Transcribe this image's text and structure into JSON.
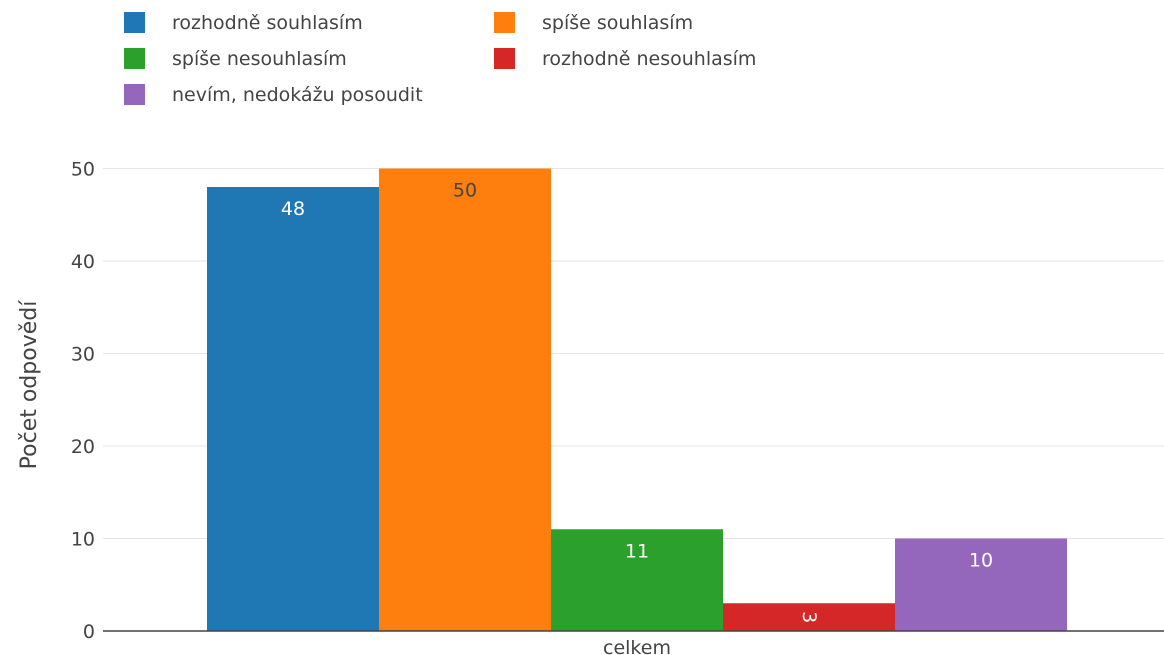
{
  "chart_data": {
    "type": "bar",
    "title": "",
    "xlabel": "",
    "ylabel": "Počet odpovědí",
    "categories": [
      "celkem"
    ],
    "ylim": [
      0,
      52
    ],
    "yticks": [
      0,
      10,
      20,
      30,
      40,
      50
    ],
    "grid": true,
    "legend_position": "top-left",
    "series": [
      {
        "name": "rozhodně souhlasím",
        "values": [
          48
        ],
        "color": "#1f77b4",
        "label_color": "#ffffff"
      },
      {
        "name": "spíše souhlasím",
        "values": [
          50
        ],
        "color": "#ff7f0e",
        "label_color": "#444444"
      },
      {
        "name": "spíše nesouhlasím",
        "values": [
          11
        ],
        "color": "#2ca02c",
        "label_color": "#ffffff"
      },
      {
        "name": "rozhodně nesouhlasím",
        "values": [
          3
        ],
        "color": "#d62728",
        "label_color": "#ffffff"
      },
      {
        "name": "nevím, nedokážu posoudit",
        "values": [
          10
        ],
        "color": "#9467bd",
        "label_color": "#ffffff"
      }
    ]
  }
}
